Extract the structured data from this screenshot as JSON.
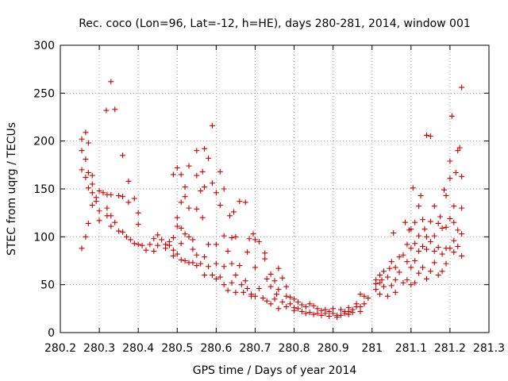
{
  "chart_data": {
    "type": "scatter",
    "title": "Rec. coco (Lon=96, Lat=-12, h=HE), days 280-281, 2014, window 001",
    "xlabel": "GPS time / Days of year 2014",
    "ylabel": "STEC from uqrg / TECUs",
    "xlim": [
      280.2,
      281.3
    ],
    "ylim": [
      0,
      300
    ],
    "xticks": [
      "280.2",
      "280.3",
      "280.4",
      "280.5",
      "280.6",
      "280.7",
      "280.8",
      "280.9",
      "281",
      "281.1",
      "281.2",
      "281.3"
    ],
    "yticks": [
      "0",
      "50",
      "100",
      "150",
      "200",
      "250",
      "300"
    ],
    "grid": true,
    "marker": "+",
    "color": "#cc0000",
    "series": [
      {
        "name": "STEC",
        "points": [
          [
            280.255,
            202
          ],
          [
            280.255,
            190
          ],
          [
            280.255,
            170
          ],
          [
            280.255,
            88
          ],
          [
            280.265,
            209
          ],
          [
            280.265,
            181
          ],
          [
            280.265,
            162
          ],
          [
            280.265,
            100
          ],
          [
            280.272,
            198
          ],
          [
            280.272,
            167
          ],
          [
            280.272,
            151
          ],
          [
            280.272,
            114
          ],
          [
            280.282,
            164
          ],
          [
            280.282,
            155
          ],
          [
            280.282,
            146
          ],
          [
            280.282,
            133
          ],
          [
            280.292,
            141
          ],
          [
            280.292,
            137
          ],
          [
            280.3,
            148
          ],
          [
            280.3,
            127
          ],
          [
            280.3,
            117
          ],
          [
            280.31,
            146
          ],
          [
            280.318,
            232
          ],
          [
            280.32,
            144
          ],
          [
            280.32,
            130
          ],
          [
            280.32,
            122
          ],
          [
            280.33,
            262
          ],
          [
            280.33,
            144
          ],
          [
            280.33,
            122
          ],
          [
            280.33,
            111
          ],
          [
            280.34,
            233
          ],
          [
            280.34,
            115
          ],
          [
            280.35,
            143
          ],
          [
            280.35,
            106
          ],
          [
            280.36,
            185
          ],
          [
            280.36,
            142
          ],
          [
            280.36,
            105
          ],
          [
            280.37,
            100
          ],
          [
            280.375,
            158
          ],
          [
            280.375,
            136
          ],
          [
            280.38,
            97
          ],
          [
            280.39,
            140
          ],
          [
            280.39,
            93
          ],
          [
            280.4,
            125
          ],
          [
            280.4,
            113
          ],
          [
            280.4,
            92
          ],
          [
            280.41,
            91
          ],
          [
            280.42,
            86
          ],
          [
            280.43,
            92
          ],
          [
            280.44,
            98
          ],
          [
            280.44,
            85
          ],
          [
            280.45,
            102
          ],
          [
            280.45,
            91
          ],
          [
            280.46,
            97
          ],
          [
            280.47,
            92
          ],
          [
            280.47,
            88
          ],
          [
            280.48,
            95
          ],
          [
            280.48,
            91
          ],
          [
            280.49,
            165
          ],
          [
            280.49,
            99
          ],
          [
            280.49,
            86
          ],
          [
            280.49,
            80
          ],
          [
            280.5,
            172
          ],
          [
            280.5,
            120
          ],
          [
            280.5,
            111
          ],
          [
            280.5,
            82
          ],
          [
            280.51,
            165
          ],
          [
            280.51,
            136
          ],
          [
            280.51,
            109
          ],
          [
            280.51,
            93
          ],
          [
            280.51,
            76
          ],
          [
            280.52,
            152
          ],
          [
            280.52,
            142
          ],
          [
            280.52,
            103
          ],
          [
            280.52,
            75
          ],
          [
            280.53,
            174
          ],
          [
            280.53,
            130
          ],
          [
            280.53,
            100
          ],
          [
            280.53,
            73
          ],
          [
            280.54,
            97
          ],
          [
            280.54,
            87
          ],
          [
            280.54,
            73
          ],
          [
            280.55,
            190
          ],
          [
            280.55,
            164
          ],
          [
            280.55,
            129
          ],
          [
            280.55,
            81
          ],
          [
            280.55,
            70
          ],
          [
            280.56,
            148
          ],
          [
            280.56,
            72
          ],
          [
            280.565,
            168
          ],
          [
            280.565,
            120
          ],
          [
            280.57,
            192
          ],
          [
            280.57,
            152
          ],
          [
            280.57,
            79
          ],
          [
            280.57,
            60
          ],
          [
            280.58,
            182
          ],
          [
            280.58,
            92
          ],
          [
            280.58,
            69
          ],
          [
            280.59,
            216
          ],
          [
            280.59,
            156
          ],
          [
            280.59,
            60
          ],
          [
            280.6,
            146
          ],
          [
            280.6,
            92
          ],
          [
            280.6,
            72
          ],
          [
            280.6,
            56
          ],
          [
            280.61,
            168
          ],
          [
            280.61,
            133
          ],
          [
            280.61,
            58
          ],
          [
            280.62,
            150
          ],
          [
            280.62,
            101
          ],
          [
            280.62,
            69
          ],
          [
            280.62,
            50
          ],
          [
            280.63,
            85
          ],
          [
            280.63,
            44
          ],
          [
            280.635,
            122
          ],
          [
            280.64,
            99
          ],
          [
            280.64,
            72
          ],
          [
            280.64,
            52
          ],
          [
            280.645,
            126
          ],
          [
            280.65,
            100
          ],
          [
            280.65,
            60
          ],
          [
            280.65,
            42
          ],
          [
            280.66,
            137
          ],
          [
            280.66,
            70
          ],
          [
            280.665,
            50
          ],
          [
            280.67,
            42
          ],
          [
            280.675,
            136
          ],
          [
            280.675,
            54
          ],
          [
            280.68,
            84
          ],
          [
            280.68,
            46
          ],
          [
            280.685,
            98
          ],
          [
            280.69,
            40
          ],
          [
            280.69,
            38
          ],
          [
            280.695,
            103
          ],
          [
            280.7,
            97
          ],
          [
            280.7,
            68
          ],
          [
            280.7,
            38
          ],
          [
            280.71,
            95
          ],
          [
            280.71,
            46
          ],
          [
            280.72,
            36
          ],
          [
            280.725,
            83
          ],
          [
            280.725,
            77
          ],
          [
            280.73,
            56
          ],
          [
            280.73,
            33
          ],
          [
            280.74,
            61
          ],
          [
            280.74,
            48
          ],
          [
            280.74,
            30
          ],
          [
            280.75,
            54
          ],
          [
            280.75,
            35
          ],
          [
            280.755,
            40
          ],
          [
            280.76,
            67
          ],
          [
            280.76,
            45
          ],
          [
            280.76,
            25
          ],
          [
            280.77,
            57
          ],
          [
            280.77,
            32
          ],
          [
            280.78,
            48
          ],
          [
            280.78,
            38
          ],
          [
            280.78,
            27
          ],
          [
            280.79,
            37
          ],
          [
            280.79,
            30
          ],
          [
            280.8,
            35
          ],
          [
            280.8,
            26
          ],
          [
            280.8,
            23
          ],
          [
            280.81,
            32
          ],
          [
            280.81,
            25
          ],
          [
            280.82,
            29
          ],
          [
            280.82,
            22
          ],
          [
            280.83,
            27
          ],
          [
            280.83,
            20
          ],
          [
            280.84,
            30
          ],
          [
            280.84,
            21
          ],
          [
            280.85,
            28
          ],
          [
            280.85,
            19
          ],
          [
            280.86,
            25
          ],
          [
            280.86,
            20
          ],
          [
            280.87,
            23
          ],
          [
            280.87,
            18
          ],
          [
            280.88,
            24
          ],
          [
            280.88,
            20
          ],
          [
            280.89,
            22
          ],
          [
            280.89,
            17
          ],
          [
            280.9,
            25
          ],
          [
            280.9,
            20
          ],
          [
            280.91,
            18
          ],
          [
            280.91,
            16
          ],
          [
            280.92,
            24
          ],
          [
            280.92,
            18
          ],
          [
            280.93,
            22
          ],
          [
            280.93,
            20
          ],
          [
            280.94,
            26
          ],
          [
            280.94,
            22
          ],
          [
            280.94,
            19
          ],
          [
            280.95,
            24
          ],
          [
            280.95,
            21
          ],
          [
            280.96,
            30
          ],
          [
            280.96,
            27
          ],
          [
            280.97,
            40
          ],
          [
            280.97,
            27
          ],
          [
            280.97,
            22
          ],
          [
            280.98,
            38
          ],
          [
            280.98,
            30
          ],
          [
            280.99,
            36
          ],
          [
            281.01,
            55
          ],
          [
            281.01,
            51
          ],
          [
            281.01,
            45
          ],
          [
            281.02,
            60
          ],
          [
            281.02,
            52
          ],
          [
            281.02,
            40
          ],
          [
            281.025,
            55
          ],
          [
            281.03,
            64
          ],
          [
            281.03,
            48
          ],
          [
            281.04,
            58
          ],
          [
            281.04,
            38
          ],
          [
            281.045,
            67
          ],
          [
            281.05,
            74
          ],
          [
            281.05,
            49
          ],
          [
            281.055,
            104
          ],
          [
            281.06,
            68
          ],
          [
            281.06,
            55
          ],
          [
            281.06,
            42
          ],
          [
            281.07,
            79
          ],
          [
            281.07,
            63
          ],
          [
            281.08,
            81
          ],
          [
            281.08,
            52
          ],
          [
            281.085,
            115
          ],
          [
            281.09,
            92
          ],
          [
            281.09,
            74
          ],
          [
            281.09,
            55
          ],
          [
            281.095,
            107
          ],
          [
            281.1,
            108
          ],
          [
            281.1,
            88
          ],
          [
            281.1,
            68
          ],
          [
            281.1,
            50
          ],
          [
            281.105,
            151
          ],
          [
            281.11,
            115
          ],
          [
            281.11,
            93
          ],
          [
            281.11,
            75
          ],
          [
            281.11,
            52
          ],
          [
            281.12,
            132
          ],
          [
            281.12,
            101
          ],
          [
            281.12,
            85
          ],
          [
            281.12,
            62
          ],
          [
            281.125,
            143
          ],
          [
            281.13,
            118
          ],
          [
            281.13,
            90
          ],
          [
            281.13,
            68
          ],
          [
            281.135,
            108
          ],
          [
            281.14,
            206
          ],
          [
            281.14,
            100
          ],
          [
            281.14,
            87
          ],
          [
            281.14,
            56
          ],
          [
            281.15,
            205
          ],
          [
            281.15,
            116
          ],
          [
            281.15,
            95
          ],
          [
            281.15,
            64
          ],
          [
            281.16,
            132
          ],
          [
            281.16,
            101
          ],
          [
            281.16,
            85
          ],
          [
            281.16,
            73
          ],
          [
            281.17,
            114
          ],
          [
            281.17,
            89
          ],
          [
            281.17,
            60
          ],
          [
            281.175,
            121
          ],
          [
            281.18,
            109
          ],
          [
            281.18,
            82
          ],
          [
            281.18,
            64
          ],
          [
            281.185,
            149
          ],
          [
            281.19,
            143
          ],
          [
            281.19,
            110
          ],
          [
            281.19,
            88
          ],
          [
            281.19,
            72
          ],
          [
            281.2,
            179
          ],
          [
            281.2,
            161
          ],
          [
            281.2,
            119
          ],
          [
            281.2,
            88
          ],
          [
            281.205,
            226
          ],
          [
            281.21,
            132
          ],
          [
            281.21,
            115
          ],
          [
            281.21,
            96
          ],
          [
            281.21,
            84
          ],
          [
            281.215,
            167
          ],
          [
            281.22,
            190
          ],
          [
            281.22,
            107
          ],
          [
            281.22,
            90
          ],
          [
            281.225,
            193
          ],
          [
            281.23,
            256
          ],
          [
            281.23,
            163
          ],
          [
            281.23,
            130
          ],
          [
            281.23,
            103
          ],
          [
            281.23,
            80
          ]
        ]
      }
    ]
  }
}
